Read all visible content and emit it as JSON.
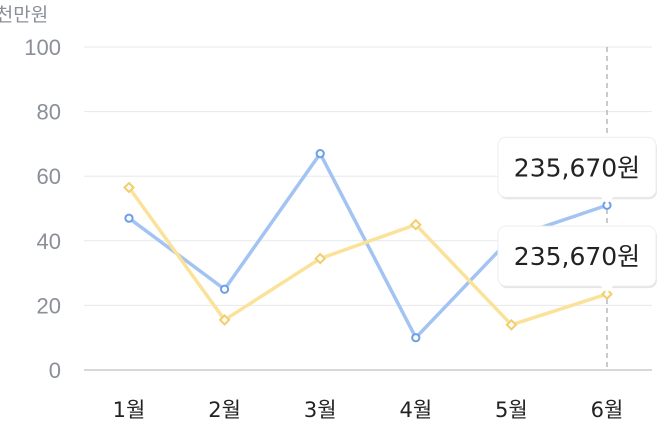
{
  "chart_data": {
    "type": "line",
    "unit_label": "천만원",
    "categories": [
      "1월",
      "2월",
      "3월",
      "4월",
      "5월",
      "6월"
    ],
    "ylim": [
      0,
      100
    ],
    "yticks": [
      0,
      20,
      40,
      60,
      80,
      100
    ],
    "grid": true,
    "series": [
      {
        "color": "#a3c4f3",
        "marker": "circle",
        "values": [
          47,
          25,
          67,
          10,
          41,
          51
        ]
      },
      {
        "color": "#fbe29a",
        "marker": "diamond",
        "values": [
          56.5,
          15.5,
          34.5,
          45,
          14,
          23.5
        ]
      }
    ],
    "highlight_category": "6월",
    "tooltips": [
      {
        "series_index": 0,
        "text": "235,670원"
      },
      {
        "series_index": 1,
        "text": "235,670원"
      }
    ]
  }
}
